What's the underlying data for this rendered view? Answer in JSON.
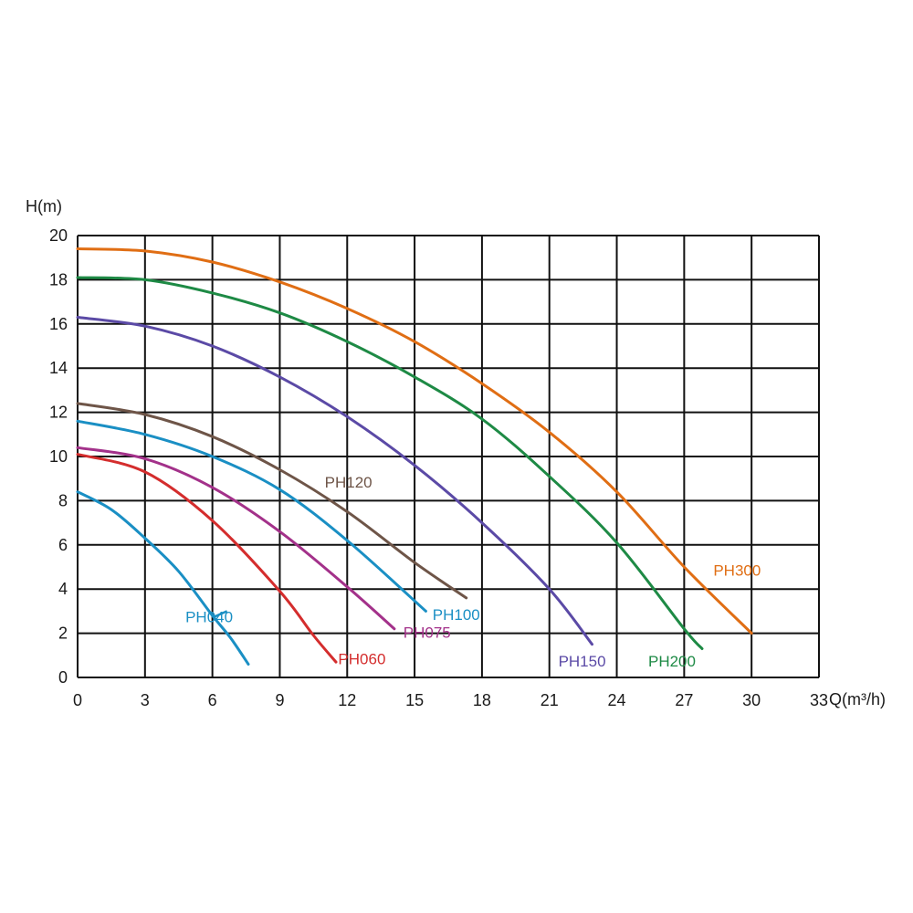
{
  "chart_data": {
    "type": "line",
    "title": "",
    "xlabel": "Q(m³/h)",
    "ylabel": "H(m)",
    "xlim": [
      0,
      33
    ],
    "ylim": [
      0,
      20
    ],
    "x_ticks": [
      "0",
      "3",
      "6",
      "9",
      "12",
      "15",
      "18",
      "21",
      "24",
      "27",
      "30",
      "33"
    ],
    "y_ticks": [
      "0",
      "2",
      "4",
      "6",
      "8",
      "10",
      "12",
      "14",
      "16",
      "18",
      "20"
    ],
    "grid": true,
    "series": [
      {
        "name": "PH040",
        "color": "#1a8fc4",
        "x": [
          0,
          1.5,
          3,
          4.5,
          6,
          6.8,
          7.6
        ],
        "y": [
          8.4,
          7.6,
          6.3,
          4.8,
          2.8,
          1.8,
          0.6
        ]
      },
      {
        "name": "PH060",
        "color": "#d42d2d",
        "x": [
          0,
          3,
          6,
          9,
          10.5,
          11.5
        ],
        "y": [
          10.1,
          9.3,
          7.1,
          3.9,
          1.9,
          0.7
        ]
      },
      {
        "name": "PH075",
        "color": "#a3318a",
        "x": [
          0,
          3,
          6,
          9,
          12,
          14.1
        ],
        "y": [
          10.4,
          9.9,
          8.6,
          6.6,
          4.1,
          2.2
        ]
      },
      {
        "name": "PH100",
        "color": "#1a8fc4",
        "x": [
          0,
          3,
          6,
          9,
          12,
          15.5
        ],
        "y": [
          11.6,
          11.0,
          10.0,
          8.5,
          6.2,
          3.0
        ]
      },
      {
        "name": "PH120",
        "color": "#6e5548",
        "x": [
          0,
          3,
          6,
          9,
          12,
          15,
          17.3
        ],
        "y": [
          12.4,
          11.9,
          10.9,
          9.4,
          7.5,
          5.2,
          3.6
        ]
      },
      {
        "name": "PH150",
        "color": "#5b4aa6",
        "x": [
          0,
          3,
          6,
          9,
          12,
          15,
          18,
          21,
          22.9
        ],
        "y": [
          16.3,
          15.9,
          15.0,
          13.6,
          11.8,
          9.6,
          7.0,
          4.0,
          1.5
        ]
      },
      {
        "name": "PH200",
        "color": "#1e8a45",
        "x": [
          0,
          3,
          6,
          9,
          12,
          15,
          18,
          21,
          24,
          27,
          27.8
        ],
        "y": [
          18.1,
          18.0,
          17.4,
          16.5,
          15.2,
          13.6,
          11.7,
          9.1,
          6.1,
          2.2,
          1.3
        ]
      },
      {
        "name": "PH300",
        "color": "#e06e14",
        "x": [
          0,
          3,
          6,
          9,
          12,
          15,
          18,
          21,
          24,
          27,
          30
        ],
        "y": [
          19.4,
          19.3,
          18.8,
          17.9,
          16.7,
          15.2,
          13.3,
          11.1,
          8.4,
          5.0,
          2.0
        ]
      }
    ],
    "series_labels": [
      {
        "text": "PH040",
        "x": 4.8,
        "y": 2.5
      },
      {
        "text": "PH060",
        "x": 11.6,
        "y": 0.6
      },
      {
        "text": "PH075",
        "x": 14.5,
        "y": 1.8
      },
      {
        "text": "PH100",
        "x": 15.8,
        "y": 2.6
      },
      {
        "text": "PH120",
        "x": 11.0,
        "y": 8.6
      },
      {
        "text": "PH150",
        "x": 21.4,
        "y": 0.5
      },
      {
        "text": "PH200",
        "x": 25.4,
        "y": 0.5
      },
      {
        "text": "PH300",
        "x": 28.3,
        "y": 4.6
      }
    ]
  }
}
